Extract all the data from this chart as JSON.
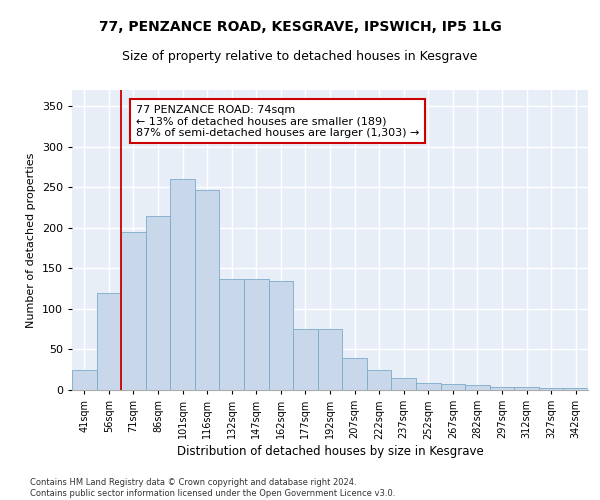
{
  "title1": "77, PENZANCE ROAD, KESGRAVE, IPSWICH, IP5 1LG",
  "title2": "Size of property relative to detached houses in Kesgrave",
  "xlabel": "Distribution of detached houses by size in Kesgrave",
  "ylabel": "Number of detached properties",
  "categories": [
    "41sqm",
    "56sqm",
    "71sqm",
    "86sqm",
    "101sqm",
    "116sqm",
    "132sqm",
    "147sqm",
    "162sqm",
    "177sqm",
    "192sqm",
    "207sqm",
    "222sqm",
    "237sqm",
    "252sqm",
    "267sqm",
    "282sqm",
    "297sqm",
    "312sqm",
    "327sqm",
    "342sqm"
  ],
  "values": [
    25,
    120,
    195,
    215,
    260,
    247,
    137,
    137,
    135,
    75,
    75,
    40,
    25,
    15,
    9,
    8,
    6,
    4,
    4,
    3,
    2
  ],
  "bar_color": "#c8d8ea",
  "bar_edge_color": "#7aaac8",
  "vline_color": "#cc0000",
  "vline_x": 2.0,
  "annotation_text": "77 PENZANCE ROAD: 74sqm\n← 13% of detached houses are smaller (189)\n87% of semi-detached houses are larger (1,303) →",
  "annotation_box_edge": "#cc0000",
  "annotation_fontsize": 8,
  "ylim": [
    0,
    370
  ],
  "yticks": [
    0,
    50,
    100,
    150,
    200,
    250,
    300,
    350
  ],
  "background_color": "#e8eef8",
  "grid_color": "#ffffff",
  "footnote": "Contains HM Land Registry data © Crown copyright and database right 2024.\nContains public sector information licensed under the Open Government Licence v3.0.",
  "title1_fontsize": 10,
  "title2_fontsize": 9,
  "xlabel_fontsize": 8.5,
  "ylabel_fontsize": 8
}
